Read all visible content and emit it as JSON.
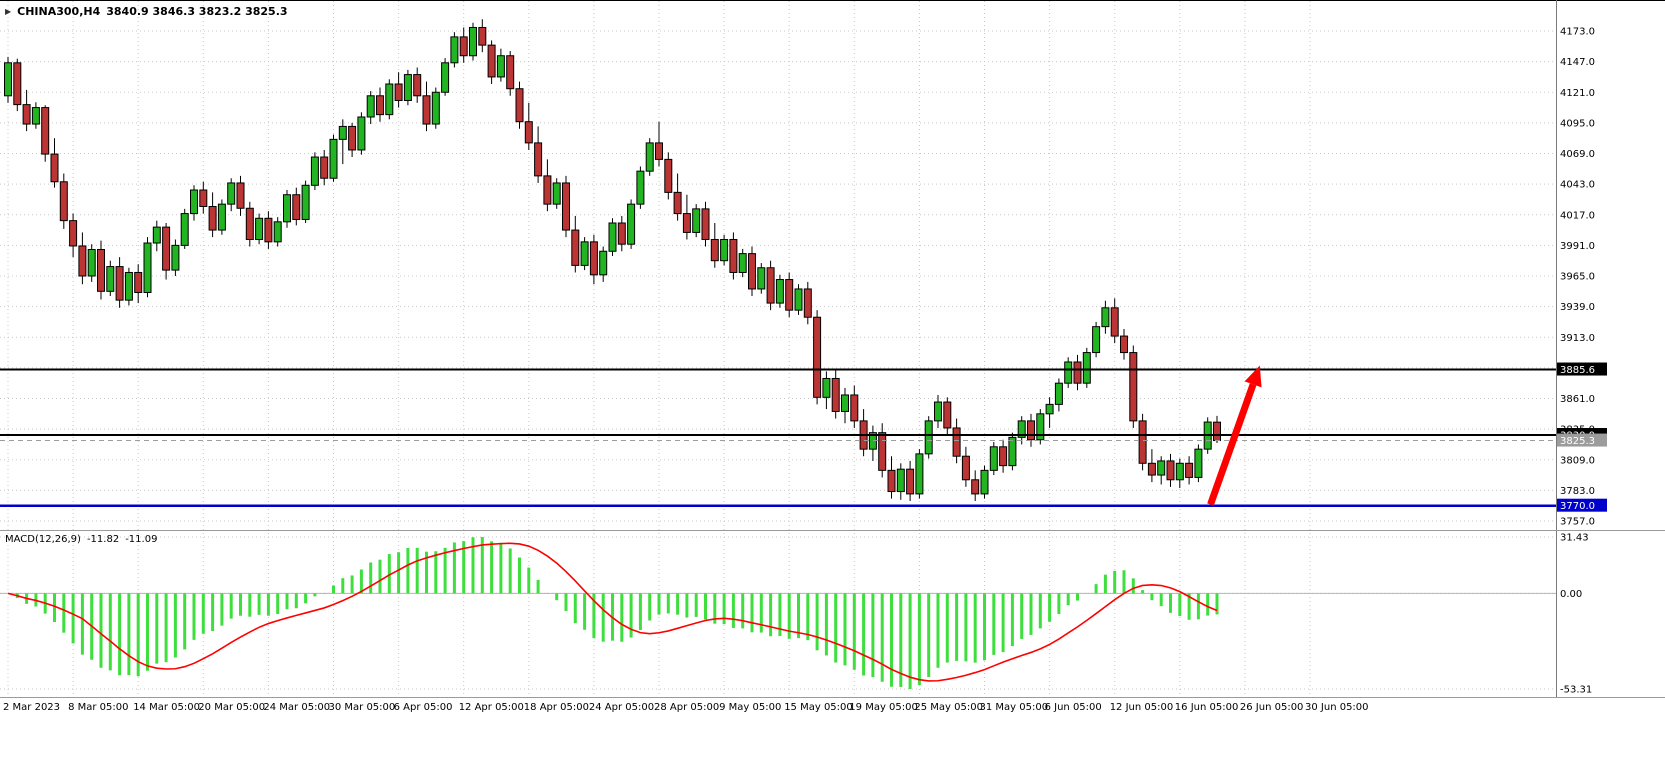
{
  "header": {
    "symbol": "CHINA300,H4",
    "ohlc": "3840.9 3846.3 3823.2 3825.3"
  },
  "macd_header": {
    "name": "MACD(12,26,9)",
    "value_main": "-11.82",
    "value_signal": "-11.09"
  },
  "chart_data": {
    "type": "candlestick",
    "symbol": "CHINA300",
    "timeframe": "H4",
    "last_bar": {
      "open": 3840.9,
      "high": 3846.3,
      "low": 3823.2,
      "close": 3825.3
    },
    "price_axis": {
      "ticks": [
        4173,
        4147,
        4121,
        4095,
        4069,
        4043,
        4017,
        3991,
        3965,
        3939,
        3913,
        3887,
        3861,
        3835,
        3809,
        3783,
        3757
      ]
    },
    "time_ticks": [
      {
        "i": 0,
        "label": "2 Mar 2023"
      },
      {
        "i": 7,
        "label": "8 Mar 05:00"
      },
      {
        "i": 14,
        "label": "14 Mar 05:00"
      },
      {
        "i": 21,
        "label": "20 Mar 05:00"
      },
      {
        "i": 28,
        "label": "24 Mar 05:00"
      },
      {
        "i": 35,
        "label": "30 Mar 05:00"
      },
      {
        "i": 42,
        "label": "6 Apr 05:00"
      },
      {
        "i": 49,
        "label": "12 Apr 05:00"
      },
      {
        "i": 56,
        "label": "18 Apr 05:00"
      },
      {
        "i": 63,
        "label": "24 Apr 05:00"
      },
      {
        "i": 70,
        "label": "28 Apr 05:00"
      },
      {
        "i": 77,
        "label": "9 May 05:00"
      },
      {
        "i": 84,
        "label": "15 May 05:00"
      },
      {
        "i": 91,
        "label": "19 May 05:00"
      },
      {
        "i": 98,
        "label": "25 May 05:00"
      },
      {
        "i": 105,
        "label": "31 May 05:00"
      },
      {
        "i": 112,
        "label": "6 Jun 05:00"
      },
      {
        "i": 119,
        "label": "12 Jun 05:00"
      },
      {
        "i": 126,
        "label": "16 Jun 05:00"
      },
      {
        "i": 133,
        "label": "26 Jun 05:00"
      },
      {
        "i": 140,
        "label": "30 Jun 05:00"
      }
    ],
    "candles": [
      [
        4118,
        4151,
        4112,
        4146
      ],
      [
        4146,
        4149.5,
        4105,
        4110.5
      ],
      [
        4110.5,
        4123,
        4088,
        4094
      ],
      [
        4094,
        4112.5,
        4090,
        4108
      ],
      [
        4108,
        4110,
        4062,
        4068.5
      ],
      [
        4068.5,
        4082,
        4040,
        4045
      ],
      [
        4045,
        4052,
        4005,
        4012
      ],
      [
        4012,
        4018,
        3981,
        3990.5
      ],
      [
        3990.5,
        4002,
        3958,
        3965
      ],
      [
        3965,
        3992,
        3960,
        3987.5
      ],
      [
        3987.5,
        3995,
        3945,
        3952
      ],
      [
        3952,
        3978,
        3948,
        3973
      ],
      [
        3973,
        3981,
        3938,
        3944.5
      ],
      [
        3944.5,
        3972,
        3940,
        3968
      ],
      [
        3968,
        3975,
        3942,
        3951
      ],
      [
        3951,
        3998,
        3947,
        3993
      ],
      [
        3993,
        4012,
        3986,
        4006.5
      ],
      [
        4006.5,
        4010,
        3962,
        3970
      ],
      [
        3970,
        3996,
        3965,
        3991
      ],
      [
        3991,
        4022,
        3988,
        4018
      ],
      [
        4018,
        4042,
        4012,
        4038
      ],
      [
        4038,
        4045,
        4018,
        4024
      ],
      [
        4024,
        4036,
        3998,
        4004
      ],
      [
        4004,
        4030,
        4000,
        4026
      ],
      [
        4026,
        4048,
        4020,
        4044
      ],
      [
        4044,
        4050,
        4016,
        4022.5
      ],
      [
        4022.5,
        4028,
        3990,
        3996
      ],
      [
        3996,
        4018,
        3992,
        4014
      ],
      [
        4014,
        4020,
        3988,
        3994
      ],
      [
        3994,
        4015,
        3990,
        4011
      ],
      [
        4011,
        4038,
        4006,
        4034
      ],
      [
        4034,
        4040,
        4008,
        4013
      ],
      [
        4013,
        4046,
        4010,
        4042
      ],
      [
        4042,
        4070,
        4038,
        4066
      ],
      [
        4066,
        4072,
        4042,
        4048
      ],
      [
        4048,
        4085,
        4045,
        4081
      ],
      [
        4081,
        4098,
        4060,
        4092
      ],
      [
        4092,
        4095,
        4066,
        4072
      ],
      [
        4072,
        4104,
        4068,
        4100
      ],
      [
        4100,
        4122,
        4094,
        4118
      ],
      [
        4118,
        4125,
        4096,
        4102
      ],
      [
        4102,
        4132,
        4098,
        4128
      ],
      [
        4128,
        4138,
        4108,
        4114
      ],
      [
        4114,
        4140,
        4110,
        4136
      ],
      [
        4136,
        4142,
        4112,
        4118
      ],
      [
        4118,
        4130,
        4088,
        4094
      ],
      [
        4094,
        4125,
        4090,
        4121
      ],
      [
        4121,
        4150,
        4118,
        4146
      ],
      [
        4146,
        4172,
        4142,
        4168
      ],
      [
        4168,
        4176,
        4146,
        4152
      ],
      [
        4152,
        4180,
        4148,
        4176
      ],
      [
        4176,
        4183,
        4155,
        4161
      ],
      [
        4161,
        4165,
        4128,
        4134
      ],
      [
        4134,
        4158,
        4130,
        4152
      ],
      [
        4152,
        4156,
        4118,
        4124
      ],
      [
        4124,
        4130,
        4090,
        4096
      ],
      [
        4096,
        4112,
        4072,
        4078
      ],
      [
        4078,
        4092,
        4044,
        4050
      ],
      [
        4050,
        4064,
        4020,
        4026
      ],
      [
        4026,
        4048,
        4022,
        4044
      ],
      [
        4044,
        4050,
        3998,
        4004
      ],
      [
        4004,
        4016,
        3968,
        3974
      ],
      [
        3974,
        3998,
        3970,
        3994
      ],
      [
        3994,
        4000,
        3958,
        3966
      ],
      [
        3966,
        3990,
        3960,
        3986
      ],
      [
        3986,
        4014,
        3982,
        4010
      ],
      [
        4010,
        4016,
        3986,
        3992
      ],
      [
        3992,
        4030,
        3988,
        4026
      ],
      [
        4026,
        4058,
        4022,
        4054
      ],
      [
        4054,
        4082,
        4050,
        4078
      ],
      [
        4078,
        4096,
        4058,
        4064
      ],
      [
        4064,
        4070,
        4030,
        4036
      ],
      [
        4036,
        4052,
        4012,
        4018
      ],
      [
        4018,
        4034,
        3996,
        4002
      ],
      [
        4002,
        4026,
        3998,
        4022
      ],
      [
        4022,
        4028,
        3990,
        3996
      ],
      [
        3996,
        4010,
        3972,
        3978
      ],
      [
        3978,
        4000,
        3974,
        3996
      ],
      [
        3996,
        4002,
        3962,
        3968
      ],
      [
        3968,
        3988,
        3964,
        3984
      ],
      [
        3984,
        3990,
        3948,
        3954
      ],
      [
        3954,
        3976,
        3950,
        3972
      ],
      [
        3972,
        3978,
        3936,
        3942
      ],
      [
        3942,
        3966,
        3938,
        3962
      ],
      [
        3962,
        3968,
        3930,
        3936
      ],
      [
        3936,
        3958,
        3932,
        3954
      ],
      [
        3954,
        3960,
        3924,
        3930
      ],
      [
        3930,
        3936,
        3856,
        3862
      ],
      [
        3862,
        3884,
        3852,
        3878
      ],
      [
        3878,
        3886,
        3844,
        3850
      ],
      [
        3850,
        3870,
        3840,
        3864
      ],
      [
        3864,
        3872,
        3836,
        3842
      ],
      [
        3842,
        3852,
        3812,
        3818
      ],
      [
        3818,
        3838,
        3808,
        3832
      ],
      [
        3832,
        3840,
        3794,
        3800
      ],
      [
        3800,
        3812,
        3776,
        3782
      ],
      [
        3782,
        3806,
        3775,
        3801
      ],
      [
        3801,
        3808,
        3774,
        3780
      ],
      [
        3780,
        3818,
        3776,
        3814
      ],
      [
        3814,
        3846,
        3810,
        3842
      ],
      [
        3842,
        3864,
        3836,
        3858
      ],
      [
        3858,
        3862,
        3830,
        3836
      ],
      [
        3836,
        3844,
        3806,
        3812
      ],
      [
        3812,
        3820,
        3786,
        3792
      ],
      [
        3792,
        3800,
        3774,
        3780
      ],
      [
        3780,
        3804,
        3776,
        3800
      ],
      [
        3800,
        3824,
        3796,
        3820
      ],
      [
        3820,
        3826,
        3798,
        3804
      ],
      [
        3804,
        3832,
        3800,
        3828
      ],
      [
        3828,
        3846,
        3822,
        3842
      ],
      [
        3842,
        3848,
        3820,
        3826
      ],
      [
        3826,
        3852,
        3822,
        3848
      ],
      [
        3848,
        3862,
        3836,
        3856
      ],
      [
        3856,
        3878,
        3850,
        3874
      ],
      [
        3874,
        3896,
        3870,
        3892
      ],
      [
        3892,
        3898,
        3868,
        3874
      ],
      [
        3874,
        3904,
        3870,
        3900
      ],
      [
        3900,
        3926,
        3896,
        3922
      ],
      [
        3922,
        3944,
        3916,
        3938
      ],
      [
        3938,
        3946,
        3908,
        3914
      ],
      [
        3914,
        3920,
        3894,
        3900
      ],
      [
        3900,
        3906,
        3836,
        3842
      ],
      [
        3842,
        3848,
        3800,
        3806
      ],
      [
        3806,
        3818,
        3790,
        3796
      ],
      [
        3796,
        3812,
        3788,
        3808
      ],
      [
        3808,
        3814,
        3786,
        3792
      ],
      [
        3792,
        3810,
        3785,
        3806
      ],
      [
        3806,
        3812,
        3788,
        3794
      ],
      [
        3794,
        3822,
        3790,
        3818
      ],
      [
        3818,
        3845,
        3814,
        3841
      ],
      [
        3840.9,
        3846.3,
        3823.2,
        3825.3
      ]
    ],
    "hlines": [
      {
        "price": 3885.6,
        "color": "#000000",
        "width": 2,
        "style": "solid",
        "tag_bg": "#000000"
      },
      {
        "price": 3830.0,
        "color": "#000000",
        "width": 2,
        "style": "solid",
        "tag_bg": "#000000"
      },
      {
        "price": 3770.0,
        "color": "#0000cc",
        "width": 2.5,
        "style": "solid",
        "tag_bg": "#0000cc"
      },
      {
        "price": 3825.3,
        "color": "#9c9c9c",
        "width": 1,
        "style": "dashed",
        "tag_bg": "#9c9c9c",
        "role": "current-price"
      }
    ],
    "arrow": {
      "from": {
        "i": 129.3,
        "price": 3771
      },
      "to": {
        "i": 134.6,
        "price": 3889
      },
      "color": "#ff0000"
    },
    "macd": {
      "name": "MACD",
      "params": [
        12,
        26,
        9
      ],
      "value_main": -11.82,
      "value_signal": -11.09,
      "axis": [
        31.43,
        0,
        -53.31
      ]
    },
    "colors": {
      "background": "#ffffff",
      "grid": "#c9c9c9",
      "axis_text": "#000000",
      "wick": "#000000",
      "bull": "#22b422",
      "bear": "#bc3535",
      "macd_hist": "#3ede3e",
      "macd_signal": "#ff0000"
    }
  }
}
